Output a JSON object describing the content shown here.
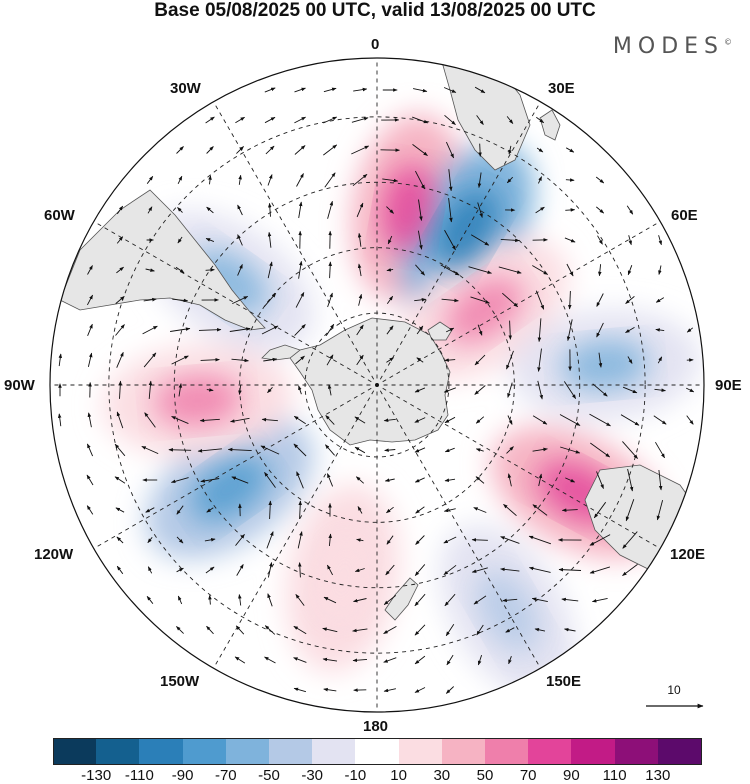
{
  "title": "Base 05/08/2025 00 UTC, valid 13/08/2025 00 UTC",
  "brand": "MODES",
  "brand_mark": "©",
  "longitude_labels": {
    "top": "0",
    "lon30e": "30E",
    "lon60e": "60E",
    "right": "90E",
    "lon120e": "120E",
    "lon150e": "150E",
    "bottom": "180",
    "lon150w": "150W",
    "lon120w": "120W",
    "left": "90W",
    "lon60w": "60W",
    "lon30w": "30W"
  },
  "vector_scale_label": "10",
  "colorbar": {
    "tick_labels": [
      "-130",
      "-110",
      "-90",
      "-70",
      "-50",
      "-30",
      "-10",
      "10",
      "30",
      "50",
      "70",
      "90",
      "110",
      "130"
    ],
    "colors": [
      "#0b3a5c",
      "#14608f",
      "#2b7fb8",
      "#4f9bcf",
      "#7fb3dc",
      "#b4c9e6",
      "#e3e3f2",
      "#ffffff",
      "#fbdde2",
      "#f6b3c3",
      "#ef7fab",
      "#e3449a",
      "#c21b86",
      "#8d0f78",
      "#5c0a6b"
    ]
  },
  "anomaly_centers": [
    {
      "name": "positive-anomaly-south-atlantic",
      "lon": 10,
      "lat_dist": 0.55,
      "value": 90
    },
    {
      "name": "negative-anomaly-southwest-indian",
      "lon": 30,
      "lat_dist": 0.55,
      "value": -90
    },
    {
      "name": "positive-anomaly-southern-indian",
      "lon": 55,
      "lat_dist": 0.4,
      "value": 70
    },
    {
      "name": "negative-anomaly-east-indian",
      "lon": 85,
      "lat_dist": 0.7,
      "value": -50
    },
    {
      "name": "positive-anomaly-south-of-australia",
      "lon": 118,
      "lat_dist": 0.7,
      "value": 90
    },
    {
      "name": "negative-anomaly-tasman",
      "lon": 150,
      "lat_dist": 0.8,
      "value": -30
    },
    {
      "name": "positive-anomaly-south-pacific",
      "lon": 190,
      "lat_dist": 0.6,
      "value": 30
    },
    {
      "name": "negative-anomaly-pacific",
      "lon": 235,
      "lat_dist": 0.55,
      "value": -70
    },
    {
      "name": "positive-anomaly-amundsen",
      "lon": 265,
      "lat_dist": 0.55,
      "value": 70
    },
    {
      "name": "negative-anomaly-drake",
      "lon": 305,
      "lat_dist": 0.55,
      "value": -50
    }
  ]
}
